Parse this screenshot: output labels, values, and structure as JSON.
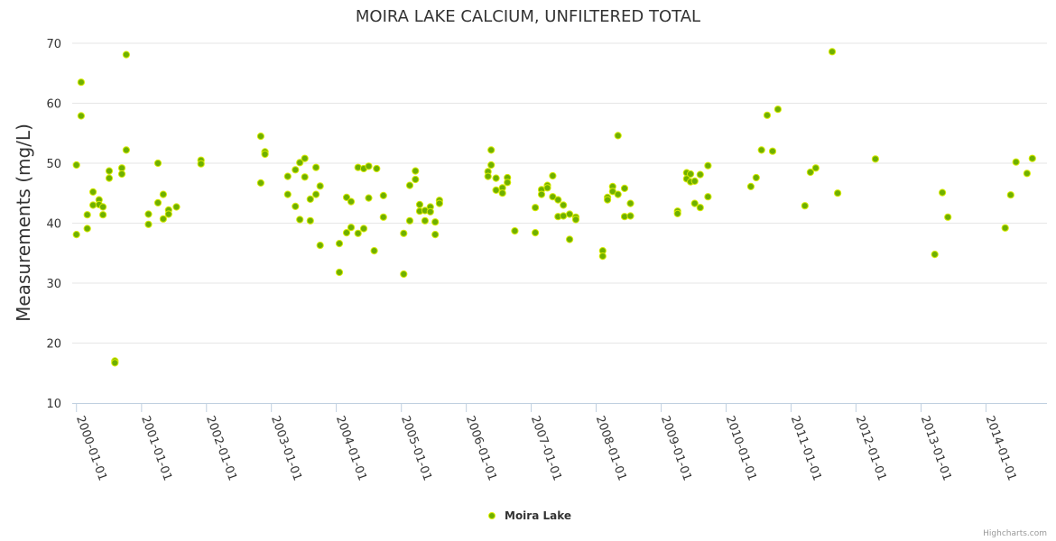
{
  "chart_data": {
    "type": "scatter",
    "title": "MOIRA LAKE CALCIUM, UNFILTERED TOTAL",
    "xlabel": "",
    "ylabel": "Measurements (mg/L)",
    "ylim": [
      10,
      70
    ],
    "xlim": [
      "1999-12-08",
      "2014-12-10"
    ],
    "yticks": [
      10,
      20,
      30,
      40,
      50,
      60,
      70
    ],
    "xticks": [
      "2000-01-01",
      "2001-01-01",
      "2002-01-01",
      "2003-01-01",
      "2004-01-01",
      "2005-01-01",
      "2006-01-01",
      "2007-01-01",
      "2008-01-01",
      "2009-01-01",
      "2010-01-01",
      "2011-01-01",
      "2012-01-01",
      "2013-01-01",
      "2014-01-01"
    ],
    "grid": "horizontal",
    "legend_position": "bottom-center",
    "credits": "Highcharts.com",
    "series": [
      {
        "name": "Moira Lake",
        "color": "#6fb000",
        "points": [
          [
            "2000-01-01",
            49.7
          ],
          [
            "2000-01-01",
            38.1
          ],
          [
            "2000-01-27",
            63.5
          ],
          [
            "2000-01-27",
            57.9
          ],
          [
            "2000-03-02",
            41.4
          ],
          [
            "2000-03-02",
            39.1
          ],
          [
            "2000-04-03",
            45.2
          ],
          [
            "2000-04-03",
            43.0
          ],
          [
            "2000-05-07",
            43.9
          ],
          [
            "2000-05-07",
            43.1
          ],
          [
            "2000-05-29",
            42.7
          ],
          [
            "2000-05-29",
            41.4
          ],
          [
            "2000-07-03",
            48.7
          ],
          [
            "2000-07-03",
            47.5
          ],
          [
            "2000-08-04",
            17.0
          ],
          [
            "2000-08-04",
            16.7
          ],
          [
            "2000-09-12",
            49.2
          ],
          [
            "2000-09-12",
            48.2
          ],
          [
            "2000-10-07",
            68.1
          ],
          [
            "2000-10-07",
            52.2
          ],
          [
            "2001-02-09",
            41.5
          ],
          [
            "2001-02-09",
            39.8
          ],
          [
            "2001-04-03",
            50.0
          ],
          [
            "2001-04-03",
            43.4
          ],
          [
            "2001-05-03",
            44.8
          ],
          [
            "2001-05-03",
            40.7
          ],
          [
            "2001-06-02",
            42.2
          ],
          [
            "2001-06-02",
            41.5
          ],
          [
            "2001-07-16",
            42.7
          ],
          [
            "2001-12-01",
            50.5
          ],
          [
            "2001-12-01",
            49.9
          ],
          [
            "2002-11-02",
            54.5
          ],
          [
            "2002-11-02",
            46.7
          ],
          [
            "2002-11-26",
            51.9
          ],
          [
            "2002-11-26",
            51.5
          ],
          [
            "2003-04-03",
            47.8
          ],
          [
            "2003-04-03",
            44.8
          ],
          [
            "2003-05-16",
            48.9
          ],
          [
            "2003-05-16",
            42.8
          ],
          [
            "2003-06-10",
            50.1
          ],
          [
            "2003-06-10",
            40.6
          ],
          [
            "2003-07-08",
            50.8
          ],
          [
            "2003-07-08",
            47.7
          ],
          [
            "2003-08-08",
            44.0
          ],
          [
            "2003-08-08",
            40.4
          ],
          [
            "2003-09-09",
            49.3
          ],
          [
            "2003-09-09",
            44.8
          ],
          [
            "2003-10-02",
            46.2
          ],
          [
            "2003-10-02",
            36.3
          ],
          [
            "2004-01-18",
            36.6
          ],
          [
            "2004-01-18",
            31.8
          ],
          [
            "2004-02-28",
            44.3
          ],
          [
            "2004-02-28",
            38.4
          ],
          [
            "2004-03-24",
            43.6
          ],
          [
            "2004-03-24",
            39.3
          ],
          [
            "2004-05-02",
            49.3
          ],
          [
            "2004-05-02",
            38.3
          ],
          [
            "2004-06-03",
            49.1
          ],
          [
            "2004-06-03",
            39.1
          ],
          [
            "2004-07-01",
            49.5
          ],
          [
            "2004-07-01",
            44.2
          ],
          [
            "2004-08-01",
            35.4
          ],
          [
            "2004-08-15",
            49.1
          ],
          [
            "2004-09-22",
            44.6
          ],
          [
            "2004-09-22",
            41.0
          ],
          [
            "2005-01-14",
            38.3
          ],
          [
            "2005-01-14",
            31.5
          ],
          [
            "2005-02-17",
            46.3
          ],
          [
            "2005-02-17",
            40.4
          ],
          [
            "2005-03-21",
            48.7
          ],
          [
            "2005-03-21",
            47.3
          ],
          [
            "2005-04-14",
            43.1
          ],
          [
            "2005-04-14",
            42.0
          ],
          [
            "2005-05-14",
            42.1
          ],
          [
            "2005-05-14",
            40.4
          ],
          [
            "2005-06-13",
            42.7
          ],
          [
            "2005-06-13",
            41.9
          ],
          [
            "2005-07-10",
            40.2
          ],
          [
            "2005-07-10",
            38.1
          ],
          [
            "2005-08-03",
            43.8
          ],
          [
            "2005-08-03",
            43.3
          ],
          [
            "2006-05-03",
            48.6
          ],
          [
            "2006-05-03",
            47.8
          ],
          [
            "2006-05-21",
            52.2
          ],
          [
            "2006-05-21",
            49.7
          ],
          [
            "2006-06-17",
            47.5
          ],
          [
            "2006-06-17",
            45.5
          ],
          [
            "2006-07-23",
            45.9
          ],
          [
            "2006-07-23",
            45.0
          ],
          [
            "2006-08-20",
            47.6
          ],
          [
            "2006-08-20",
            46.8
          ],
          [
            "2006-10-01",
            38.7
          ],
          [
            "2007-01-24",
            42.6
          ],
          [
            "2007-01-24",
            38.4
          ],
          [
            "2007-02-28",
            45.6
          ],
          [
            "2007-02-28",
            44.8
          ],
          [
            "2007-04-02",
            46.3
          ],
          [
            "2007-04-02",
            45.9
          ],
          [
            "2007-05-02",
            47.9
          ],
          [
            "2007-05-02",
            44.4
          ],
          [
            "2007-06-01",
            43.9
          ],
          [
            "2007-06-01",
            41.1
          ],
          [
            "2007-07-01",
            43.0
          ],
          [
            "2007-07-01",
            41.2
          ],
          [
            "2007-08-05",
            41.5
          ],
          [
            "2007-08-05",
            37.3
          ],
          [
            "2007-09-09",
            41.0
          ],
          [
            "2007-09-09",
            40.6
          ],
          [
            "2008-02-07",
            35.4
          ],
          [
            "2008-02-07",
            34.5
          ],
          [
            "2008-03-05",
            44.3
          ],
          [
            "2008-03-05",
            43.9
          ],
          [
            "2008-04-03",
            46.1
          ],
          [
            "2008-04-03",
            45.3
          ],
          [
            "2008-05-03",
            54.6
          ],
          [
            "2008-05-03",
            44.8
          ],
          [
            "2008-06-09",
            45.8
          ],
          [
            "2008-06-09",
            41.1
          ],
          [
            "2008-07-12",
            43.3
          ],
          [
            "2008-07-12",
            41.2
          ],
          [
            "2009-04-03",
            42.0
          ],
          [
            "2009-04-03",
            41.6
          ],
          [
            "2009-05-24",
            48.4
          ],
          [
            "2009-05-24",
            47.4
          ],
          [
            "2009-06-15",
            48.2
          ],
          [
            "2009-06-15",
            46.9
          ],
          [
            "2009-07-08",
            43.3
          ],
          [
            "2009-07-08",
            47.0
          ],
          [
            "2009-08-08",
            48.1
          ],
          [
            "2009-08-08",
            42.6
          ],
          [
            "2009-09-21",
            49.6
          ],
          [
            "2009-09-21",
            44.4
          ],
          [
            "2010-05-20",
            46.1
          ],
          [
            "2010-06-19",
            47.6
          ],
          [
            "2010-07-19",
            52.2
          ],
          [
            "2010-08-20",
            58.0
          ],
          [
            "2010-09-19",
            52.0
          ],
          [
            "2010-10-19",
            59.0
          ],
          [
            "2011-03-20",
            42.9
          ],
          [
            "2011-04-20",
            48.5
          ],
          [
            "2011-05-20",
            49.2
          ],
          [
            "2011-08-20",
            68.6
          ],
          [
            "2011-09-20",
            45.0
          ],
          [
            "2012-04-19",
            50.7
          ],
          [
            "2013-03-19",
            34.8
          ],
          [
            "2013-05-01",
            45.1
          ],
          [
            "2013-06-01",
            41.0
          ],
          [
            "2014-04-19",
            39.2
          ],
          [
            "2014-05-20",
            44.7
          ],
          [
            "2014-06-19",
            50.2
          ],
          [
            "2014-08-20",
            48.3
          ],
          [
            "2014-09-19",
            50.8
          ]
        ]
      }
    ]
  }
}
